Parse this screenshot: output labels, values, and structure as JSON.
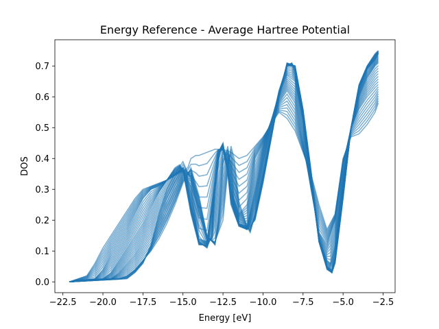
{
  "chart_data": {
    "type": "line",
    "title": "Energy Reference - Average Hartree Potential",
    "xlabel": "Energy [eV]",
    "ylabel": "DOS",
    "xlim": [
      -23.0,
      -1.75
    ],
    "ylim": [
      -0.035,
      0.785
    ],
    "grid": false,
    "legend": "none",
    "series_color": "#1f77b4",
    "series_alpha": 0.6,
    "xticks": [
      {
        "value": -22.5,
        "label": "−22.5"
      },
      {
        "value": -20.0,
        "label": "−20.0"
      },
      {
        "value": -17.5,
        "label": "−17.5"
      },
      {
        "value": -15.0,
        "label": "−15.0"
      },
      {
        "value": -12.5,
        "label": "−12.5"
      },
      {
        "value": -10.0,
        "label": "−10.0"
      },
      {
        "value": -7.5,
        "label": "−7.5"
      },
      {
        "value": -5.0,
        "label": "−5.0"
      },
      {
        "value": -2.5,
        "label": "−2.5"
      }
    ],
    "yticks": [
      {
        "value": 0.0,
        "label": "0.0"
      },
      {
        "value": 0.1,
        "label": "0.1"
      },
      {
        "value": 0.2,
        "label": "0.2"
      },
      {
        "value": 0.3,
        "label": "0.3"
      },
      {
        "value": 0.4,
        "label": "0.4"
      },
      {
        "value": 0.5,
        "label": "0.5"
      },
      {
        "value": 0.6,
        "label": "0.6"
      },
      {
        "value": 0.7,
        "label": "0.7"
      }
    ],
    "series": [
      {
        "x": [
          -22.1,
          -21.0,
          -20.5,
          -20.0,
          -19.5,
          -19.0,
          -18.5,
          -18.0,
          -17.5,
          -17.0,
          -16.5,
          -16.0,
          -15.5,
          -15.0,
          -14.7,
          -14.5,
          -14.2,
          -14.0,
          -13.5,
          -13.0,
          -12.5,
          -12.0,
          -11.5,
          -11.0,
          -10.5,
          -10.0,
          -9.5,
          -9.0,
          -8.5,
          -8.0,
          -7.5,
          -7.0,
          -6.5,
          -6.0,
          -5.5,
          -5.0,
          -4.5,
          -4.0,
          -3.5,
          -3.0,
          -2.8
        ],
        "values": [
          0.0,
          0.02,
          0.06,
          0.11,
          0.15,
          0.19,
          0.23,
          0.27,
          0.3,
          0.31,
          0.32,
          0.33,
          0.345,
          0.36,
          0.37,
          0.4,
          0.41,
          0.41,
          0.42,
          0.43,
          0.43,
          0.42,
          0.4,
          0.41,
          0.44,
          0.47,
          0.51,
          0.55,
          0.53,
          0.49,
          0.42,
          0.35,
          0.25,
          0.17,
          0.22,
          0.4,
          0.47,
          0.48,
          0.51,
          0.55,
          0.58
        ]
      },
      {
        "x": [
          -22.1,
          -20.5,
          -20.0,
          -19.5,
          -19.0,
          -18.5,
          -18.0,
          -17.5,
          -17.0,
          -16.5,
          -16.0,
          -15.5,
          -15.0,
          -14.8,
          -14.5,
          -14.0,
          -13.5,
          -13.0,
          -12.8,
          -12.5,
          -12.0,
          -11.5,
          -11.0,
          -10.5,
          -10.0,
          -9.5,
          -9.0,
          -8.5,
          -8.0,
          -7.5,
          -7.0,
          -6.5,
          -6.0,
          -5.5,
          -5.0,
          -4.5,
          -4.0,
          -3.5,
          -3.0,
          -2.8
        ],
        "values": [
          0.0,
          0.01,
          0.04,
          0.09,
          0.13,
          0.17,
          0.22,
          0.27,
          0.3,
          0.31,
          0.33,
          0.35,
          0.37,
          0.34,
          0.25,
          0.14,
          0.13,
          0.33,
          0.42,
          0.43,
          0.3,
          0.22,
          0.25,
          0.4,
          0.45,
          0.52,
          0.58,
          0.62,
          0.58,
          0.45,
          0.3,
          0.16,
          0.12,
          0.2,
          0.38,
          0.5,
          0.56,
          0.6,
          0.63,
          0.64
        ]
      },
      {
        "x": [
          -22.1,
          -20.0,
          -19.5,
          -19.0,
          -18.5,
          -18.0,
          -17.5,
          -17.0,
          -16.5,
          -16.0,
          -15.5,
          -15.2,
          -15.0,
          -14.5,
          -14.0,
          -13.5,
          -13.0,
          -12.7,
          -12.5,
          -12.2,
          -12.0,
          -11.5,
          -11.0,
          -10.5,
          -10.0,
          -9.5,
          -9.0,
          -8.5,
          -8.0,
          -7.5,
          -7.0,
          -6.5,
          -6.0,
          -5.8,
          -5.5,
          -5.0,
          -4.5,
          -4.0,
          -3.5,
          -3.0,
          -2.8
        ],
        "values": [
          0.0,
          0.01,
          0.03,
          0.07,
          0.11,
          0.15,
          0.19,
          0.24,
          0.29,
          0.33,
          0.37,
          0.38,
          0.36,
          0.22,
          0.12,
          0.12,
          0.3,
          0.42,
          0.44,
          0.38,
          0.28,
          0.19,
          0.18,
          0.3,
          0.42,
          0.52,
          0.61,
          0.67,
          0.65,
          0.52,
          0.32,
          0.14,
          0.07,
          0.06,
          0.12,
          0.33,
          0.5,
          0.6,
          0.66,
          0.7,
          0.71
        ]
      },
      {
        "x": [
          -22.1,
          -19.5,
          -19.0,
          -18.5,
          -18.0,
          -17.5,
          -17.0,
          -16.5,
          -16.0,
          -15.5,
          -15.0,
          -14.5,
          -14.0,
          -13.5,
          -13.2,
          -13.0,
          -12.8,
          -12.5,
          -12.2,
          -12.0,
          -11.5,
          -11.0,
          -10.5,
          -10.0,
          -9.5,
          -9.0,
          -8.5,
          -8.2,
          -8.0,
          -7.5,
          -7.0,
          -6.5,
          -6.0,
          -5.7,
          -5.5,
          -5.0,
          -4.5,
          -4.0,
          -3.5,
          -3.0,
          -2.8
        ],
        "values": [
          0.0,
          0.01,
          0.03,
          0.06,
          0.09,
          0.13,
          0.17,
          0.22,
          0.27,
          0.32,
          0.36,
          0.3,
          0.13,
          0.11,
          0.15,
          0.3,
          0.42,
          0.45,
          0.35,
          0.25,
          0.18,
          0.17,
          0.25,
          0.38,
          0.5,
          0.62,
          0.7,
          0.71,
          0.68,
          0.54,
          0.33,
          0.13,
          0.05,
          0.04,
          0.08,
          0.3,
          0.5,
          0.62,
          0.69,
          0.72,
          0.73
        ]
      },
      {
        "x": [
          -22.1,
          -19.0,
          -18.5,
          -18.0,
          -17.5,
          -17.0,
          -16.5,
          -16.0,
          -15.5,
          -15.0,
          -14.5,
          -14.0,
          -13.5,
          -13.0,
          -12.8,
          -12.5,
          -12.2,
          -12.0,
          -11.8,
          -11.5,
          -11.0,
          -10.5,
          -10.0,
          -9.5,
          -9.0,
          -8.5,
          -8.0,
          -7.5,
          -7.0,
          -6.5,
          -6.0,
          -5.7,
          -5.5,
          -5.0,
          -4.5,
          -4.0,
          -3.5,
          -3.0,
          -2.8
        ],
        "values": [
          0.0,
          0.01,
          0.02,
          0.04,
          0.07,
          0.1,
          0.14,
          0.19,
          0.25,
          0.32,
          0.37,
          0.28,
          0.15,
          0.12,
          0.2,
          0.38,
          0.44,
          0.36,
          0.25,
          0.19,
          0.17,
          0.2,
          0.32,
          0.46,
          0.6,
          0.71,
          0.7,
          0.55,
          0.35,
          0.13,
          0.04,
          0.03,
          0.07,
          0.28,
          0.5,
          0.64,
          0.7,
          0.74,
          0.75
        ]
      },
      {
        "x": [
          -22.1,
          -18.5,
          -18.0,
          -17.5,
          -17.0,
          -16.5,
          -16.0,
          -15.5,
          -15.0,
          -14.5,
          -14.0,
          -13.5,
          -13.0,
          -12.5,
          -12.2,
          -12.0,
          -11.8,
          -11.5,
          -11.0,
          -10.8,
          -10.5,
          -10.0,
          -9.5,
          -9.0,
          -8.5,
          -8.0,
          -7.5,
          -7.0,
          -6.5,
          -6.0,
          -5.7,
          -5.5,
          -5.0,
          -4.5,
          -4.0,
          -3.5,
          -3.0,
          -2.8
        ],
        "values": [
          0.0,
          0.01,
          0.03,
          0.06,
          0.12,
          0.22,
          0.3,
          0.35,
          0.39,
          0.33,
          0.22,
          0.14,
          0.13,
          0.2,
          0.36,
          0.44,
          0.4,
          0.26,
          0.18,
          0.16,
          0.22,
          0.35,
          0.48,
          0.6,
          0.7,
          0.7,
          0.56,
          0.36,
          0.14,
          0.05,
          0.03,
          0.06,
          0.27,
          0.5,
          0.63,
          0.69,
          0.72,
          0.74
        ]
      }
    ]
  }
}
